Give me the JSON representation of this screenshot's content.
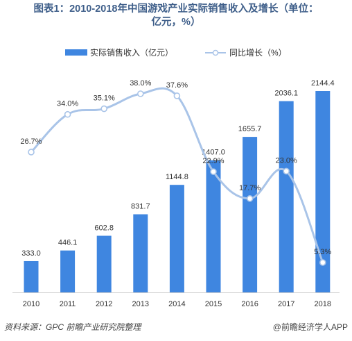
{
  "title_line1": "图表1：2010-2018年中国游戏产业实际销售收入及增长（单位：",
  "title_line2": "亿元，%）",
  "footer": {
    "source": "资料来源：GPC 前瞻产业研究院整理",
    "brand": "@前瞻经济学人APP"
  },
  "colors": {
    "bar": "#3f86e0",
    "line": "#a9c4e8",
    "marker_fill": "#ffffff",
    "marker_stroke": "#a9c4e8"
  },
  "chart_data": {
    "type": "bar",
    "categories": [
      "2010",
      "2011",
      "2012",
      "2013",
      "2014",
      "2015",
      "2016",
      "2017",
      "2018"
    ],
    "series": [
      {
        "name": "实际销售收入（亿元）",
        "type": "bar",
        "values": [
          333.0,
          446.1,
          602.8,
          831.7,
          1144.8,
          1407.0,
          1655.7,
          2036.1,
          2144.4
        ],
        "labels": [
          "333.0",
          "446.1",
          "602.8",
          "831.7",
          "1144.8",
          "1407.0",
          "1655.7",
          "2036.1",
          "2144.4"
        ]
      },
      {
        "name": "同比增长（%）",
        "type": "line",
        "values": [
          26.7,
          34.0,
          35.1,
          38.0,
          37.6,
          22.9,
          17.7,
          23.0,
          5.3
        ],
        "labels": [
          "26.7%",
          "34.0%",
          "35.1%",
          "38.0%",
          "37.6%",
          "22.9%",
          "17.7%",
          "23.0%",
          "5.3%"
        ]
      }
    ],
    "legend_position": "top",
    "grid": false
  }
}
